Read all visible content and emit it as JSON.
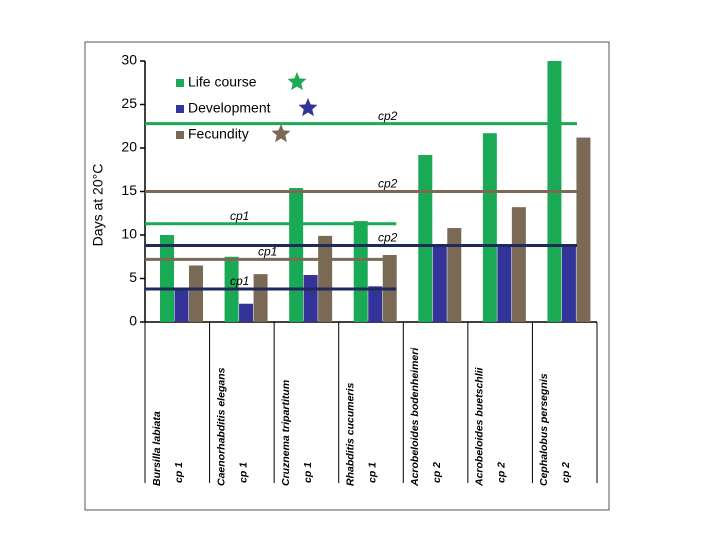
{
  "chart_data": {
    "type": "bar",
    "y_label": "Days at 20°C",
    "categories": [
      "Bursilla labiata",
      "Caenorhabditis elegans",
      "Cruznema tripartitum",
      "Rhabditis cucumeris",
      "Acrobeloides bodenheimeri",
      "Acrobeloides buetschlii",
      "Cephalobus persegnis"
    ],
    "cp_groups": [
      "cp 1",
      "cp 1",
      "cp 1",
      "cp 1",
      "cp 2",
      "cp 2",
      "cp 2"
    ],
    "series": [
      {
        "name": "Life course",
        "color": "#1aaa55",
        "values": [
          10,
          7.5,
          15.4,
          11.6,
          19.2,
          21.7,
          30
        ]
      },
      {
        "name": "Development",
        "color": "#333399",
        "values": [
          3.8,
          2.1,
          5.4,
          4.1,
          8.7,
          8.7,
          8.7
        ]
      },
      {
        "name": "Fecundity",
        "color": "#7a6a55",
        "values": [
          6.5,
          5.5,
          9.9,
          7.7,
          10.8,
          13.2,
          21.2
        ]
      }
    ],
    "reference_lines": [
      {
        "label": "cp2",
        "value": 22.8,
        "color": "#1aaa55"
      },
      {
        "label": "cp2",
        "value": 15,
        "color": "#7a6a55"
      },
      {
        "label": "cp1",
        "value": 11.3,
        "color": "#1aaa55"
      },
      {
        "label": "cp1",
        "value": 7.2,
        "color": "#7a6a55"
      },
      {
        "label": "cp2",
        "value": 8.8,
        "color": "#1f2a5a"
      },
      {
        "label": "cp1",
        "value": 3.8,
        "color": "#1f2a5a"
      }
    ],
    "ylim": [
      0,
      30
    ],
    "yticks": [
      0,
      5,
      10,
      15,
      20,
      25,
      30
    ]
  }
}
